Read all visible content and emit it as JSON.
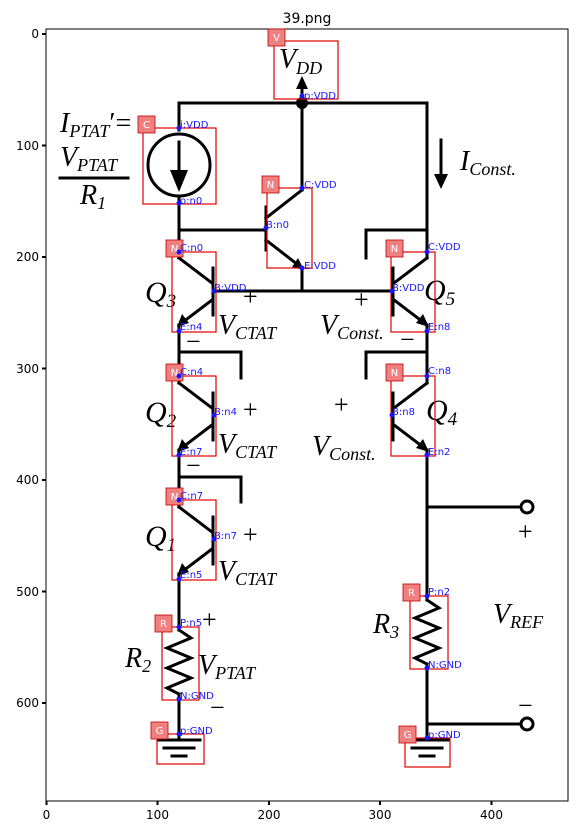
{
  "plot": {
    "title": "39.png",
    "x_ticks": [
      "0",
      "100",
      "200",
      "300",
      "400"
    ],
    "y_ticks": [
      "0",
      "100",
      "200",
      "300",
      "400",
      "500",
      "600"
    ]
  },
  "labels": {
    "vdd_main": "V",
    "vdd_sub": "DD",
    "iptat_main": "I",
    "iptat_sub": "PTAT",
    "iptat_prime": "′=",
    "frac_num_main": "V",
    "frac_num_sub": "PTAT",
    "frac_den_main": "R",
    "frac_den_sub": "1",
    "iconst_main": "I",
    "iconst_sub": "Const.",
    "q3_main": "Q",
    "q3_sub": "3",
    "q2_main": "Q",
    "q2_sub": "2",
    "q1_main": "Q",
    "q1_sub": "1",
    "q5_main": "Q",
    "q5_sub": "5",
    "q4_main": "Q",
    "q4_sub": "4",
    "vctat1_main": "V",
    "vctat1_sub": "CTAT",
    "vctat2_main": "V",
    "vctat2_sub": "CTAT",
    "vctat3_main": "V",
    "vctat3_sub": "CTAT",
    "vconst1_main": "V",
    "vconst1_sub": "Const.",
    "vconst2_main": "V",
    "vconst2_sub": "Const.",
    "vptat_main": "V",
    "vptat_sub": "PTAT",
    "r2_main": "R",
    "r2_sub": "2",
    "r3_main": "R",
    "r3_sub": "3",
    "vref_main": "V",
    "vref_sub": "REF",
    "plus": "+",
    "minus": "−"
  },
  "components": {
    "vdd": {
      "tag": "V",
      "pins": [
        "p:VDD"
      ]
    },
    "isrc": {
      "tag": "C",
      "pins": [
        "i:VDD",
        "o:n0"
      ]
    },
    "npn_top": {
      "tag": "N",
      "pins": [
        "C:VDD",
        "B:n0",
        "E:VDD"
      ]
    },
    "q3": {
      "tag": "N",
      "pins": [
        "C:n0",
        "B:VDD",
        "E:n4"
      ]
    },
    "q2": {
      "tag": "N",
      "pins": [
        "C:n4",
        "B:n4",
        "E:n7"
      ]
    },
    "q1": {
      "tag": "N",
      "pins": [
        "C:n7",
        "B:n7",
        "E:n5"
      ]
    },
    "q5": {
      "tag": "N",
      "pins": [
        "C:VDD",
        "B:VDD",
        "E:n8"
      ]
    },
    "q4": {
      "tag": "N",
      "pins": [
        "C:n8",
        "B:n8",
        "E:n2"
      ]
    },
    "r2": {
      "tag": "R",
      "pins": [
        "P:n5",
        "N:GND"
      ]
    },
    "r3": {
      "tag": "R",
      "pins": [
        "P:n2",
        "N:GND"
      ]
    },
    "gnd_left": {
      "tag": "G",
      "pins": [
        "p:GND"
      ]
    },
    "gnd_right": {
      "tag": "G",
      "pins": [
        "p:GND"
      ]
    }
  },
  "colors": {
    "box": "#e00000",
    "tag": "#f08080",
    "pin": "#1515ff",
    "wire": "#000000"
  }
}
